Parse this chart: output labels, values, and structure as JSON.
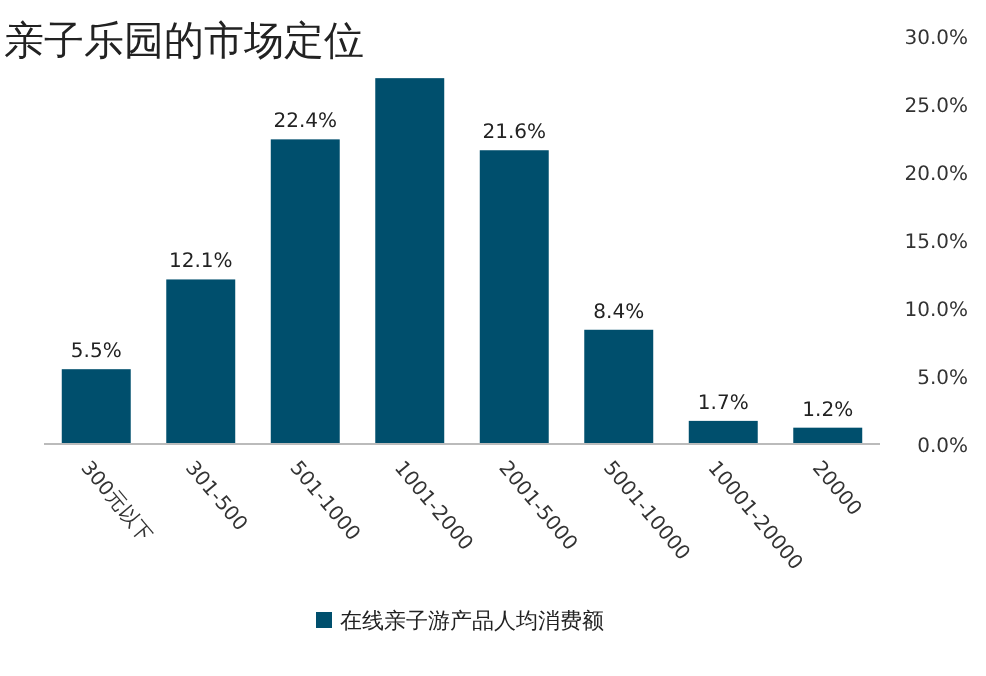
{
  "chart_data": {
    "type": "bar",
    "title": "亲子乐园的市场定位",
    "categories": [
      "300元以下",
      "301-500",
      "501-1000",
      "1001-2000",
      "2001-5000",
      "5001-10000",
      "10001-20000",
      "20000"
    ],
    "series": [
      {
        "name": "在线亲子游产品人均消费额",
        "color": "#004f6d",
        "values": [
          5.5,
          12.1,
          22.4,
          26.9,
          21.6,
          8.4,
          1.7,
          1.2
        ],
        "value_labels": [
          "5.5%",
          "12.1%",
          "22.4%",
          null,
          "21.6%",
          "8.4%",
          "1.7%",
          "1.2%"
        ]
      }
    ],
    "ylim": [
      0,
      30
    ],
    "yticks": [
      {
        "value": 0,
        "label": "0.0%"
      },
      {
        "value": 5,
        "label": "5.0%"
      },
      {
        "value": 10,
        "label": "10.0%"
      },
      {
        "value": 15,
        "label": "15.0%"
      },
      {
        "value": 20,
        "label": "20.0%"
      },
      {
        "value": 25,
        "label": "25.0%"
      },
      {
        "value": 30,
        "label": "30.0%"
      }
    ],
    "grid": false,
    "legend": "bottom"
  }
}
